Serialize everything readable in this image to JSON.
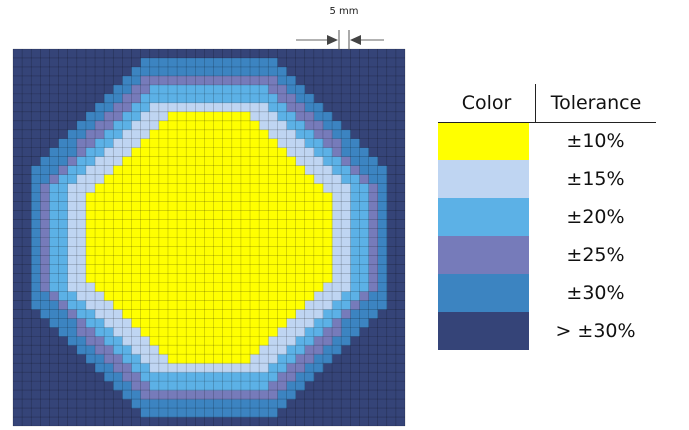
{
  "scale_label": "5 mm",
  "legend": {
    "color_header": "Color",
    "tolerance_header": "Tolerance",
    "items": [
      {
        "color": "#ffff00",
        "tolerance": "±10%"
      },
      {
        "color": "#bfd5f2",
        "tolerance": "±15%"
      },
      {
        "color": "#5cb1e6",
        "tolerance": "±20%"
      },
      {
        "color": "#767bba",
        "tolerance": "±25%"
      },
      {
        "color": "#3c84c1",
        "tolerance": "±30%"
      },
      {
        "color": "#354478",
        "tolerance": "> ±30%"
      }
    ]
  },
  "grid": {
    "columns": 43,
    "rows": 42
  }
}
